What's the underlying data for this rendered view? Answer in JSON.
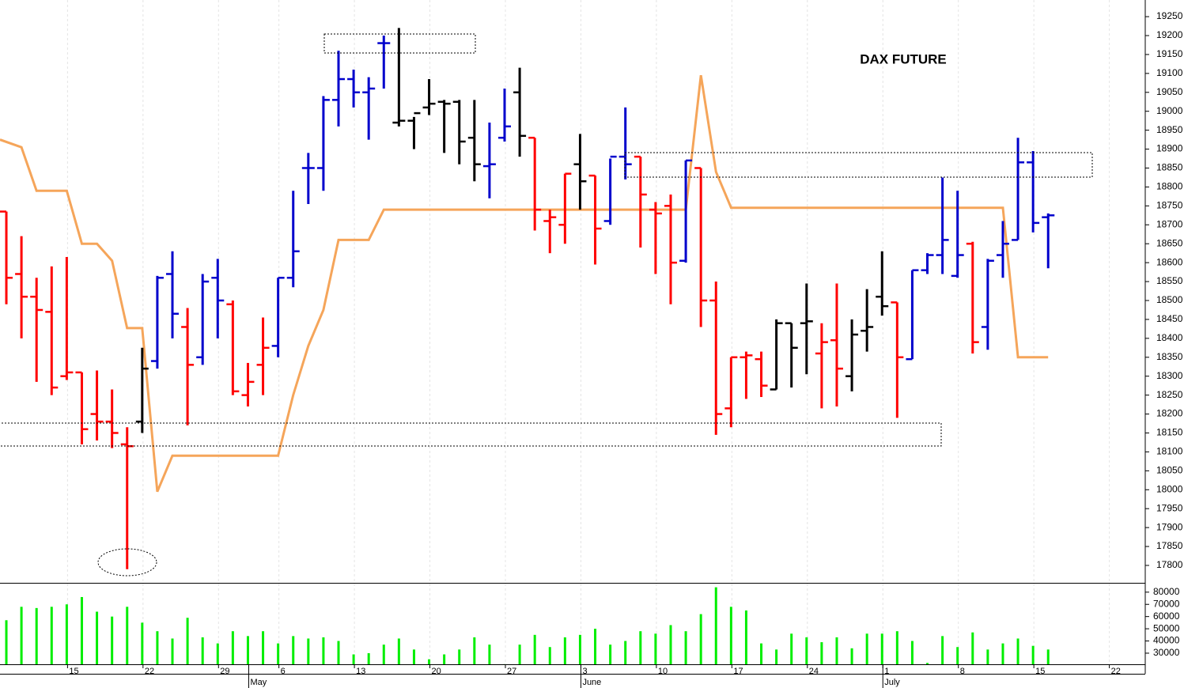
{
  "chart_data": {
    "type": "ohlc",
    "title": "DAX FUTURE",
    "xlim": [
      -0.42,
      75.43
    ],
    "xticks": [
      {
        "value": 4,
        "label": "15"
      },
      {
        "value": 9,
        "label": "22"
      },
      {
        "value": 14,
        "label": "29"
      },
      {
        "value": 18,
        "label": "6"
      },
      {
        "value": 23,
        "label": "13"
      },
      {
        "value": 28,
        "label": "20"
      },
      {
        "value": 33,
        "label": "27"
      },
      {
        "value": 38,
        "label": "3"
      },
      {
        "value": 43,
        "label": "10"
      },
      {
        "value": 48,
        "label": "17"
      },
      {
        "value": 53,
        "label": "24"
      },
      {
        "value": 58,
        "label": "1"
      },
      {
        "value": 63,
        "label": "8"
      },
      {
        "value": 68,
        "label": "15"
      },
      {
        "value": 73,
        "label": "22"
      }
    ],
    "month_ticks": [
      {
        "value": 16,
        "label": "May"
      },
      {
        "value": 38,
        "label": "June"
      },
      {
        "value": 58,
        "label": "July"
      }
    ],
    "ylim": [
      17754,
      19294
    ],
    "yticks": [
      17800,
      17850,
      17900,
      17950,
      18000,
      18050,
      18100,
      18150,
      18200,
      18250,
      18300,
      18350,
      18400,
      18450,
      18500,
      18550,
      18600,
      18650,
      18700,
      18750,
      18800,
      18850,
      18900,
      18950,
      19000,
      19050,
      19100,
      19150,
      19200,
      19250
    ],
    "open": [
      18735,
      18570,
      18510,
      18470,
      18300,
      18310,
      18200,
      18180,
      18120,
      18180,
      18340,
      18570,
      18430,
      18350,
      18560,
      18490,
      18250,
      18330,
      18380,
      18560,
      18850,
      18850,
      19030,
      19085,
      19050,
      19180,
      18970,
      18975,
      19010,
      19025,
      19025,
      18930,
      18855,
      18930,
      19050,
      18930,
      18710,
      18700,
      18860,
      18830,
      18710,
      18880,
      18880,
      18740,
      18750,
      18605,
      18850,
      18500,
      18215,
      18350,
      18345,
      18265,
      18440,
      18440,
      18360,
      18395,
      18300,
      18420,
      18510,
      18495,
      18345,
      18580,
      18620,
      18565,
      18650,
      18430,
      18620,
      18660,
      18865,
      18720
    ],
    "high": [
      18735,
      18670,
      18560,
      18590,
      18615,
      18310,
      18315,
      18265,
      18165,
      18375,
      18565,
      18630,
      18480,
      18570,
      18610,
      18500,
      18335,
      18455,
      18560,
      18790,
      18890,
      19040,
      19160,
      19110,
      19090,
      19200,
      19220,
      18985,
      19085,
      19030,
      19030,
      19030,
      18970,
      19060,
      19115,
      18930,
      18740,
      18835,
      18940,
      18830,
      18875,
      19010,
      18880,
      18760,
      18780,
      18870,
      18850,
      18550,
      18350,
      18365,
      18365,
      18450,
      18440,
      18545,
      18440,
      18545,
      18450,
      18530,
      18630,
      18495,
      18580,
      18625,
      18825,
      18790,
      18655,
      18610,
      18710,
      18930,
      18895,
      18730
    ],
    "low": [
      18490,
      18400,
      18285,
      18250,
      18290,
      18120,
      18130,
      18110,
      17790,
      18150,
      18320,
      18400,
      18170,
      18330,
      18400,
      18250,
      18220,
      18250,
      18350,
      18535,
      18755,
      18790,
      18960,
      19010,
      18925,
      19060,
      18960,
      18900,
      18990,
      18890,
      18860,
      18815,
      18770,
      18920,
      18880,
      18685,
      18625,
      18650,
      18740,
      18595,
      18700,
      18820,
      18640,
      18570,
      18490,
      18600,
      18430,
      18145,
      18165,
      18240,
      18245,
      18265,
      18270,
      18305,
      18215,
      18220,
      18260,
      18365,
      18460,
      18190,
      18345,
      18570,
      18570,
      18560,
      18360,
      18370,
      18560,
      18660,
      18680,
      18585
    ],
    "close": [
      18560,
      18510,
      18475,
      18270,
      18310,
      18160,
      18180,
      18150,
      18115,
      18320,
      18560,
      18465,
      18330,
      18550,
      18500,
      18260,
      18285,
      18375,
      18560,
      18630,
      18850,
      19030,
      19085,
      19050,
      19060,
      19180,
      18975,
      18995,
      19020,
      19020,
      18920,
      18860,
      18860,
      18960,
      18935,
      18740,
      18720,
      18835,
      18815,
      18690,
      18880,
      18860,
      18780,
      18730,
      18600,
      18870,
      18500,
      18200,
      18350,
      18355,
      18275,
      18440,
      18375,
      18445,
      18390,
      18320,
      18410,
      18430,
      18485,
      18350,
      18580,
      18620,
      18660,
      18620,
      18390,
      18605,
      18650,
      18865,
      18705,
      18725
    ],
    "colors": [
      "#ff0000",
      "#ff0000",
      "#ff0000",
      "#ff0000",
      "#ff0000",
      "#ff0000",
      "#ff0000",
      "#ff0000",
      "#ff0000",
      "#000000",
      "#0000cc",
      "#0000cc",
      "#ff0000",
      "#0000cc",
      "#0000cc",
      "#ff0000",
      "#ff0000",
      "#ff0000",
      "#0000cc",
      "#0000cc",
      "#0000cc",
      "#0000cc",
      "#0000cc",
      "#0000cc",
      "#0000cc",
      "#0000cc",
      "#000000",
      "#000000",
      "#000000",
      "#000000",
      "#000000",
      "#000000",
      "#0000cc",
      "#0000cc",
      "#000000",
      "#ff0000",
      "#ff0000",
      "#ff0000",
      "#000000",
      "#ff0000",
      "#0000cc",
      "#0000cc",
      "#ff0000",
      "#ff0000",
      "#ff0000",
      "#0000cc",
      "#ff0000",
      "#ff0000",
      "#ff0000",
      "#ff0000",
      "#ff0000",
      "#000000",
      "#000000",
      "#000000",
      "#ff0000",
      "#ff0000",
      "#000000",
      "#000000",
      "#000000",
      "#ff0000",
      "#0000cc",
      "#0000cc",
      "#0000cc",
      "#0000cc",
      "#ff0000",
      "#0000cc",
      "#0000cc",
      "#0000cc",
      "#0000cc",
      "#0000cc"
    ],
    "line": {
      "color": "#f5a55a",
      "x": [
        -0.42,
        1,
        2,
        4,
        5,
        6,
        7,
        8,
        9,
        10,
        11,
        18,
        19,
        20,
        21,
        22,
        24,
        25,
        45,
        46,
        47,
        48,
        66,
        67,
        69
      ],
      "values": [
        18925,
        18905,
        18790,
        18790,
        18650,
        18650,
        18605,
        18427,
        18427,
        17995,
        18090,
        18090,
        18250,
        18380,
        18475,
        18660,
        18660,
        18740,
        18740,
        19095,
        18840,
        18745,
        18745,
        18350,
        18350
      ]
    },
    "volume": {
      "color": "#00ee00",
      "values": [
        57000,
        68000,
        67000,
        68000,
        70000,
        76000,
        64000,
        60000,
        68000,
        55000,
        48000,
        42000,
        59000,
        43000,
        38000,
        48000,
        44000,
        48000,
        38000,
        44000,
        42000,
        43000,
        40000,
        29000,
        30000,
        37000,
        42000,
        33000,
        25000,
        29000,
        33000,
        43000,
        37000,
        21000,
        37000,
        45000,
        35000,
        43000,
        45000,
        50000,
        37000,
        40000,
        48000,
        46000,
        53000,
        48000,
        62000,
        84000,
        68000,
        65000,
        38000,
        33000,
        46000,
        43000,
        39000,
        43000,
        34000,
        46000,
        46000,
        48000,
        40000,
        22000,
        44000,
        35000,
        47000,
        33000,
        38000,
        42000,
        36000,
        33000
      ],
      "ylim": [
        20900,
        87000
      ],
      "yticks": [
        30000,
        40000,
        50000,
        60000,
        70000,
        80000
      ]
    }
  }
}
